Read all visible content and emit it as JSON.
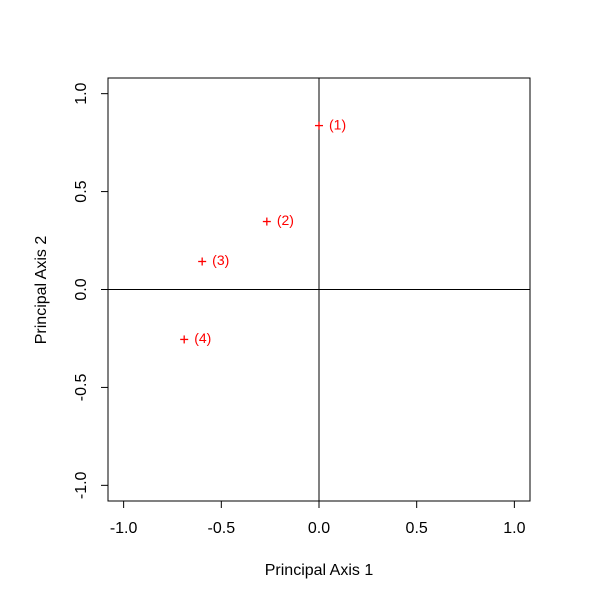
{
  "chart_data": {
    "type": "scatter",
    "xlabel": "Principal Axis 1",
    "ylabel": "Principal Axis 2",
    "xlim": [
      -1.08,
      1.08
    ],
    "ylim": [
      -1.08,
      1.08
    ],
    "xticks": [
      {
        "value": -1,
        "label": "-1.0"
      },
      -0.5,
      {
        "value": 0,
        "label": "0.0"
      },
      0.5,
      {
        "value": 1,
        "label": "1.0"
      }
    ],
    "yticks": [
      {
        "value": -1,
        "label": "-1.0"
      },
      -0.5,
      {
        "value": 0,
        "label": "0.0"
      },
      0.5,
      {
        "value": 1,
        "label": "1.0"
      }
    ],
    "hline": 0,
    "vline": 0,
    "series": [
      {
        "color": "#ff0000",
        "marker": "+",
        "x": [
          0,
          -0.267,
          -0.598,
          -0.69
        ],
        "values": [
          0.837,
          0.347,
          0.143,
          -0.255
        ],
        "labels": [
          "(1)",
          "(2)",
          "(3)",
          "(4)"
        ]
      }
    ]
  }
}
